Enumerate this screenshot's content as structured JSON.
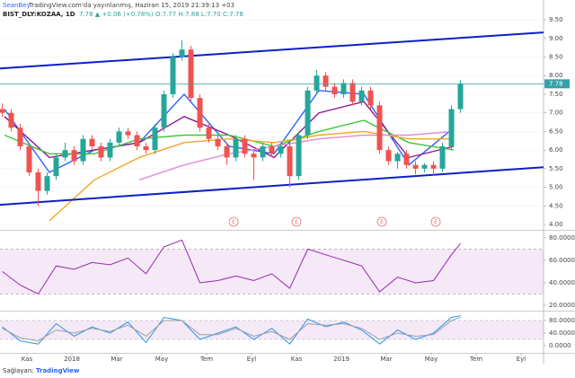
{
  "header": {
    "author": "SeanBey",
    "published": "TradingView.com'da yayınlanmış, Haziran 15, 2019 21:39:13 +03",
    "symbol": "BIST_DLY:KOZAA, 1D",
    "quote": "7.78 ▲ +0.06 (+0.78%) O:7.77 H:7.88 L:7.70 C:7.78"
  },
  "footer": {
    "label": "Sağlayan:",
    "brand": "TradingView"
  },
  "chart_data": [
    {
      "type": "candlestick",
      "x": [
        -1.1,
        -0.7,
        -0.3,
        0.1,
        0.5,
        0.9,
        1.3,
        1.7,
        2.1,
        2.5,
        2.9,
        3.3,
        3.7,
        4.1,
        4.5,
        4.9,
        5.3,
        5.7,
        6.1,
        6.5,
        6.9,
        7.3,
        7.7,
        8.1,
        8.5,
        8.9,
        9.3,
        9.7,
        10.1,
        10.5,
        10.9,
        11.3,
        11.7,
        12.1,
        12.5,
        12.9,
        13.3,
        13.7,
        14.1,
        14.5,
        14.9,
        15.3,
        15.7,
        16.1,
        16.5,
        16.9,
        17.3,
        17.7,
        18.1,
        18.5,
        18.9,
        19.3
      ],
      "open": [
        7.1,
        7.0,
        6.6,
        6.1,
        5.4,
        4.9,
        5.3,
        5.8,
        6.0,
        5.7,
        6.3,
        6.1,
        5.8,
        6.2,
        6.5,
        6.4,
        6.1,
        6.0,
        6.6,
        7.5,
        8.5,
        8.7,
        7.4,
        6.6,
        6.3,
        6.1,
        5.8,
        6.3,
        5.9,
        5.8,
        6.1,
        5.9,
        6.1,
        5.3,
        6.4,
        7.6,
        8.0,
        7.7,
        7.5,
        7.8,
        7.3,
        7.6,
        7.2,
        6.0,
        5.7,
        5.9,
        5.6,
        5.5,
        5.6,
        5.5,
        6.1,
        7.1
      ],
      "high": [
        7.25,
        7.1,
        6.7,
        6.2,
        5.5,
        5.4,
        5.9,
        6.2,
        6.1,
        6.4,
        6.4,
        6.2,
        6.3,
        6.6,
        6.6,
        6.5,
        6.2,
        6.7,
        7.6,
        8.6,
        8.95,
        8.8,
        7.5,
        6.7,
        6.4,
        6.2,
        6.4,
        6.4,
        6.0,
        6.2,
        6.2,
        6.2,
        6.2,
        6.5,
        7.7,
        8.15,
        8.1,
        7.8,
        7.9,
        7.9,
        7.7,
        7.7,
        7.3,
        6.1,
        5.95,
        6.0,
        5.7,
        5.65,
        5.7,
        6.2,
        7.2,
        7.88
      ],
      "low": [
        6.9,
        6.5,
        6.0,
        5.3,
        4.5,
        4.8,
        5.2,
        5.7,
        5.6,
        5.6,
        6.0,
        5.7,
        5.7,
        6.1,
        6.3,
        6.0,
        5.9,
        5.9,
        6.5,
        7.4,
        8.4,
        7.3,
        6.5,
        6.2,
        6.0,
        5.6,
        5.7,
        5.8,
        5.2,
        5.7,
        5.8,
        5.8,
        5.0,
        5.2,
        6.3,
        7.5,
        7.6,
        7.4,
        7.4,
        7.2,
        7.2,
        7.1,
        5.9,
        5.6,
        5.5,
        5.5,
        5.35,
        5.4,
        5.3,
        5.4,
        6.0,
        7.0
      ],
      "close": [
        7.0,
        6.6,
        6.1,
        5.4,
        4.9,
        5.3,
        5.8,
        6.0,
        5.7,
        6.3,
        6.1,
        5.8,
        6.2,
        6.5,
        6.4,
        6.1,
        6.0,
        6.6,
        7.5,
        8.5,
        8.7,
        7.4,
        6.6,
        6.3,
        6.1,
        5.8,
        6.3,
        5.9,
        5.8,
        6.1,
        5.9,
        6.1,
        5.3,
        6.4,
        7.6,
        8.0,
        7.7,
        7.5,
        7.8,
        7.3,
        7.6,
        7.2,
        6.0,
        5.7,
        5.9,
        5.6,
        5.5,
        5.6,
        5.5,
        6.1,
        7.1,
        7.78
      ],
      "up_color": "#26a69a",
      "down_color": "#ef5350",
      "xlim": [
        -1.2,
        23
      ],
      "xticks": [
        {
          "value": 0,
          "label": "Kas"
        },
        {
          "value": 2,
          "label": "2018"
        },
        {
          "value": 4,
          "label": "Mar"
        },
        {
          "value": 6,
          "label": "May"
        },
        {
          "value": 8,
          "label": "Tem"
        },
        {
          "value": 10,
          "label": "Eyl"
        },
        {
          "value": 12,
          "label": "Kas"
        },
        {
          "value": 14,
          "label": "2019"
        },
        {
          "value": 16,
          "label": "Mar"
        },
        {
          "value": 18,
          "label": "May"
        },
        {
          "value": 20,
          "label": "Tem"
        },
        {
          "value": 22,
          "label": "Eyl"
        }
      ],
      "ylim": [
        3.88,
        9.67
      ],
      "yticks": [
        {
          "value": 4,
          "label": "4.00"
        },
        {
          "value": 4.5,
          "label": "4.50"
        },
        {
          "value": 5,
          "label": "5.00"
        },
        {
          "value": 5.5,
          "label": "5.50"
        },
        {
          "value": 6,
          "label": "6.00"
        },
        {
          "value": 6.5,
          "label": "6.50"
        },
        {
          "value": 7,
          "label": "7.00"
        },
        {
          "value": 7.5,
          "label": "7.50"
        },
        {
          "value": 8,
          "label": "8.00"
        },
        {
          "value": 8.5,
          "label": "8.50"
        },
        {
          "value": 9,
          "label": "9.00"
        },
        {
          "value": 9.5,
          "label": "9.50"
        }
      ],
      "grid": true,
      "last_price": 7.78,
      "last_price_color": "#35a0a8",
      "trendlines": [
        {
          "color": "#0d1fc4",
          "x": [
            -1.2,
            23
          ],
          "values": [
            8.19,
            9.16
          ]
        },
        {
          "color": "#0d1fc4",
          "x": [
            -1.2,
            23
          ],
          "values": [
            4.53,
            5.54
          ]
        }
      ],
      "series": [
        {
          "color": "#2962ff",
          "x": [
            -1,
            1,
            3,
            5,
            7,
            9,
            11,
            13,
            15,
            17,
            19
          ],
          "values": [
            7.1,
            5.4,
            6.0,
            6.2,
            7.5,
            6.1,
            5.9,
            7.6,
            7.5,
            5.6,
            6.6
          ]
        },
        {
          "color": "#8e1b8e",
          "x": [
            -1,
            1,
            3,
            5,
            7,
            9,
            11,
            13,
            15,
            17,
            19
          ],
          "values": [
            6.9,
            5.8,
            6.0,
            6.2,
            6.9,
            6.4,
            5.8,
            7.0,
            7.3,
            5.8,
            6.1
          ]
        },
        {
          "color": "#3ec43e",
          "x": [
            -1,
            1,
            3,
            5,
            7,
            9,
            11,
            13,
            15,
            17,
            19
          ],
          "values": [
            6.4,
            5.9,
            5.9,
            6.3,
            6.4,
            6.4,
            6.1,
            6.5,
            6.8,
            6.2,
            6.0
          ]
        },
        {
          "color": "#f5a623",
          "x": [
            -1,
            1,
            3,
            5,
            7,
            9,
            11,
            13,
            15,
            17,
            19
          ],
          "values": [
            null,
            4.1,
            5.2,
            5.8,
            6.2,
            6.3,
            6.2,
            6.4,
            6.5,
            6.3,
            6.3
          ]
        },
        {
          "color": "#e08ad6",
          "x": [
            -1,
            1,
            3,
            5,
            7,
            9,
            11,
            13,
            15,
            17,
            19
          ],
          "values": [
            null,
            null,
            null,
            5.2,
            5.6,
            5.9,
            6.1,
            6.3,
            6.4,
            6.4,
            6.5
          ]
        }
      ],
      "events": [
        {
          "x": 9.2,
          "label": "E"
        },
        {
          "x": 12,
          "label": "E"
        },
        {
          "x": 15.8,
          "label": "E"
        },
        {
          "x": 18.2,
          "label": "E"
        }
      ],
      "event_color": "#e57373"
    },
    {
      "type": "line",
      "ylim": [
        16,
        85.5
      ],
      "yticks": [
        {
          "value": 20,
          "label": "20.0000"
        },
        {
          "value": 40,
          "label": "40.0000"
        },
        {
          "value": 60,
          "label": "60.0000"
        },
        {
          "value": 80,
          "label": "80.0000"
        }
      ],
      "band": [
        30,
        70
      ],
      "band_color": "#9c27b0",
      "series": [
        {
          "color": "#9c27b0",
          "x": [
            -1.1,
            -0.3,
            0.5,
            1.3,
            2.1,
            2.9,
            3.7,
            4.5,
            5.3,
            6.1,
            6.9,
            7.7,
            8.5,
            9.3,
            10.1,
            10.9,
            11.7,
            12.5,
            13.3,
            14.1,
            14.9,
            15.7,
            16.5,
            17.3,
            18.1,
            18.9,
            19.3
          ],
          "values": [
            50,
            38,
            30,
            55,
            52,
            58,
            56,
            62,
            48,
            72,
            78,
            40,
            42,
            46,
            42,
            48,
            35,
            70,
            65,
            60,
            55,
            32,
            45,
            40,
            42,
            65,
            75
          ]
        }
      ]
    },
    {
      "type": "line",
      "ylim": [
        -20,
        105.7
      ],
      "yticks": [
        {
          "value": 0,
          "label": "0.0000"
        },
        {
          "value": 40,
          "label": "40.0000"
        },
        {
          "value": 80,
          "label": "80.0000"
        }
      ],
      "band": [
        20,
        80
      ],
      "band_color": "#9c27b0",
      "series": [
        {
          "color": "#2196f3",
          "x": [
            -1.1,
            -0.3,
            0.5,
            1.3,
            2.1,
            2.9,
            3.7,
            4.5,
            5.3,
            6.1,
            6.9,
            7.7,
            8.5,
            9.3,
            10.1,
            10.9,
            11.7,
            12.5,
            13.3,
            14.1,
            14.9,
            15.7,
            16.5,
            17.3,
            18.1,
            18.9,
            19.3
          ],
          "values": [
            60,
            15,
            5,
            70,
            30,
            60,
            40,
            75,
            10,
            90,
            80,
            20,
            40,
            60,
            20,
            55,
            5,
            85,
            60,
            75,
            50,
            5,
            50,
            20,
            40,
            90,
            95
          ]
        },
        {
          "color": "#9e9e9e",
          "x": [
            -1.1,
            -0.3,
            0.5,
            1.3,
            2.1,
            2.9,
            3.7,
            4.5,
            5.3,
            6.1,
            6.9,
            7.7,
            8.5,
            9.3,
            10.1,
            10.9,
            11.7,
            12.5,
            13.3,
            14.1,
            14.9,
            15.7,
            16.5,
            17.3,
            18.1,
            18.9,
            19.3
          ],
          "values": [
            55,
            25,
            15,
            50,
            40,
            55,
            45,
            65,
            30,
            80,
            80,
            35,
            35,
            55,
            30,
            45,
            20,
            70,
            65,
            70,
            55,
            20,
            40,
            30,
            35,
            80,
            90
          ]
        }
      ]
    }
  ]
}
